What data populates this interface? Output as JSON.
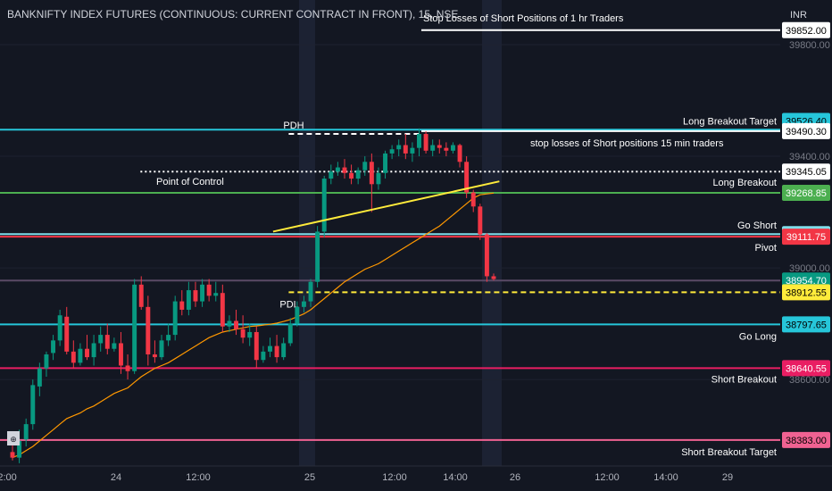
{
  "header": {
    "title": "BANKNIFTY INDEX FUTURES (CONTINUOUS: CURRENT CONTRACT IN FRONT), 15, NSE",
    "currency": "INR"
  },
  "chart_data": {
    "type": "candlestick",
    "ylim": [
      38290,
      39960
    ],
    "y_ticks": [
      {
        "value": 39800,
        "label": "39800.00"
      },
      {
        "value": 39400,
        "label": "39400.00"
      },
      {
        "value": 39000,
        "label": "39000.00"
      },
      {
        "value": 38600,
        "label": "38600.00"
      }
    ],
    "x_ticks": [
      "12:00",
      "24",
      "12:00",
      "25",
      "12:00",
      "14:00",
      "26",
      "12:00",
      "14:00",
      "29"
    ],
    "levels": [
      {
        "value": 39852.0,
        "label": "39852.00",
        "name": "Stop Losses of Short Positions of 1 hr Traders",
        "color": "#ffffff",
        "text_color": "#000000",
        "style": "solid",
        "start": 0.54,
        "name_anchor": "start"
      },
      {
        "value": 39526.4,
        "label": "39526.40",
        "name": "",
        "color": "#26c6da",
        "text_color": "#000000",
        "style": "none"
      },
      {
        "value": 39495.25,
        "label": "39495.25",
        "name": "Long Breakout Target",
        "color": "#26c6da",
        "text_color": "#ffffff",
        "style": "solid",
        "badge": "plain"
      },
      {
        "value": 39490.3,
        "label": "39490.30",
        "name": "stop losses of  Short positions 15 min traders",
        "color": "#ffffff",
        "text_color": "#000000",
        "style": "solid",
        "start": 0.54,
        "name_anchor": "mid"
      },
      {
        "value": 39480.0,
        "label": "",
        "name": "PDH",
        "color": "#ffffff",
        "style": "dashed",
        "start": 0.37,
        "end": 0.54,
        "name_anchor": "startabove"
      },
      {
        "value": 39345.05,
        "label": "39345.05",
        "name": "Point of Control",
        "color": "#ffffff",
        "text_color": "#000000",
        "style": "dotted",
        "start": 0.18,
        "name_anchor": "poc"
      },
      {
        "value": 39268.85,
        "label": "39268.85",
        "name": "Long Breakout",
        "color": "#4caf50",
        "text_color": "#ffffff",
        "style": "solid",
        "badge_color": "#4caf50"
      },
      {
        "value": 39121.15,
        "label": "39121.15",
        "name": "Go Short",
        "color": "#80deea",
        "text_color": "#000000",
        "style": "solid"
      },
      {
        "value": 39111.75,
        "label": "39111.75",
        "name": "Pivot",
        "color": "#f23645",
        "text_color": "#ffffff",
        "style": "solid"
      },
      {
        "value": 38954.7,
        "label": "38954.70",
        "name": "",
        "color": "#5b4a66",
        "text_color": "#ffffff",
        "style": "solid",
        "badge_color": "#089981"
      },
      {
        "value": 38912.55,
        "label": "38912.55",
        "name": "PDL",
        "color": "#ffeb3b",
        "text_color": "#000000",
        "style": "dashed",
        "start": 0.37,
        "name_anchor": "pdl"
      },
      {
        "value": 38797.65,
        "label": "38797.65",
        "name": "Go Long",
        "color": "#26c6da",
        "text_color": "#000000",
        "style": "solid"
      },
      {
        "value": 38640.55,
        "label": "38640.55",
        "name": "Short Breakout",
        "color": "#e91e63",
        "text_color": "#ffffff",
        "style": "solid"
      },
      {
        "value": 38383.0,
        "label": "38383.00",
        "name": "Short Breakout Target",
        "color": "#f06292",
        "text_color": "#000000",
        "style": "solid"
      }
    ],
    "trendline": {
      "color": "#ffeb3b",
      "from": [
        0.35,
        39130
      ],
      "to": [
        0.64,
        39310
      ]
    },
    "candles": [
      [
        38340,
        38380,
        38320,
        38310
      ],
      [
        38320,
        38420,
        38380,
        38300
      ],
      [
        38385,
        38460,
        38440,
        38360
      ],
      [
        38440,
        38600,
        38580,
        38420
      ],
      [
        38575,
        38660,
        38640,
        38540
      ],
      [
        38640,
        38700,
        38690,
        38610
      ],
      [
        38695,
        38760,
        38740,
        38670
      ],
      [
        38740,
        38850,
        38830,
        38720
      ],
      [
        38825,
        38860,
        38700,
        38690
      ],
      [
        38700,
        38740,
        38660,
        38640
      ],
      [
        38660,
        38730,
        38710,
        38650
      ],
      [
        38710,
        38760,
        38680,
        38670
      ],
      [
        38680,
        38760,
        38730,
        38650
      ],
      [
        38730,
        38790,
        38760,
        38700
      ],
      [
        38760,
        38800,
        38710,
        38690
      ],
      [
        38710,
        38750,
        38730,
        38700
      ],
      [
        38730,
        38770,
        38650,
        38620
      ],
      [
        38650,
        38690,
        38630,
        38600
      ],
      [
        38630,
        38960,
        38940,
        38620
      ],
      [
        38940,
        38970,
        38860,
        38850
      ],
      [
        38860,
        38900,
        38690,
        38650
      ],
      [
        38690,
        38740,
        38680,
        38660
      ],
      [
        38680,
        38760,
        38740,
        38670
      ],
      [
        38740,
        38800,
        38760,
        38720
      ],
      [
        38760,
        38900,
        38880,
        38740
      ],
      [
        38880,
        38920,
        38850,
        38830
      ],
      [
        38850,
        38950,
        38920,
        38830
      ],
      [
        38920,
        38950,
        38880,
        38860
      ],
      [
        38880,
        38960,
        38940,
        38860
      ],
      [
        38940,
        38960,
        38900,
        38880
      ],
      [
        38900,
        38950,
        38910,
        38880
      ],
      [
        38910,
        38940,
        38790,
        38770
      ],
      [
        38790,
        38830,
        38810,
        38770
      ],
      [
        38810,
        38850,
        38780,
        38760
      ],
      [
        38780,
        38830,
        38750,
        38730
      ],
      [
        38750,
        38800,
        38770,
        38720
      ],
      [
        38770,
        38790,
        38670,
        38640
      ],
      [
        38670,
        38720,
        38700,
        38660
      ],
      [
        38700,
        38750,
        38720,
        38680
      ],
      [
        38720,
        38760,
        38680,
        38660
      ],
      [
        38680,
        38750,
        38730,
        38670
      ],
      [
        38730,
        38820,
        38800,
        38720
      ],
      [
        38800,
        38880,
        38860,
        38790
      ],
      [
        38860,
        38900,
        38880,
        38840
      ],
      [
        38880,
        38960,
        38950,
        38860
      ],
      [
        38950,
        39150,
        39130,
        38930
      ],
      [
        39130,
        39330,
        39320,
        39110
      ],
      [
        39320,
        39370,
        39345,
        39300
      ],
      [
        39345,
        39380,
        39360,
        39330
      ],
      [
        39360,
        39390,
        39340,
        39320
      ],
      [
        39340,
        39370,
        39320,
        39300
      ],
      [
        39320,
        39360,
        39350,
        39300
      ],
      [
        39350,
        39400,
        39380,
        39330
      ],
      [
        39380,
        39410,
        39300,
        39200
      ],
      [
        39300,
        39360,
        39340,
        39280
      ],
      [
        39340,
        39420,
        39410,
        39320
      ],
      [
        39410,
        39440,
        39425,
        39390
      ],
      [
        39425,
        39460,
        39440,
        39400
      ],
      [
        39440,
        39480,
        39410,
        39390
      ],
      [
        39410,
        39450,
        39430,
        39380
      ],
      [
        39430,
        39500,
        39480,
        39400
      ],
      [
        39480,
        39490,
        39420,
        39410
      ],
      [
        39420,
        39460,
        39440,
        39400
      ],
      [
        39440,
        39460,
        39430,
        39410
      ],
      [
        39430,
        39450,
        39420,
        39400
      ],
      [
        39420,
        39450,
        39440,
        39410
      ],
      [
        39440,
        39445,
        39380,
        39360
      ],
      [
        39380,
        39400,
        39270,
        39250
      ],
      [
        39270,
        39280,
        39220,
        39200
      ],
      [
        39220,
        39230,
        39120,
        39100
      ],
      [
        39120,
        39125,
        38970,
        38950
      ],
      [
        38970,
        38980,
        38960,
        38955
      ]
    ],
    "ma_values": [
      38320,
      38330,
      38345,
      38360,
      38380,
      38400,
      38420,
      38440,
      38460,
      38470,
      38480,
      38495,
      38505,
      38520,
      38535,
      38550,
      38560,
      38570,
      38590,
      38610,
      38625,
      38640,
      38650,
      38660,
      38675,
      38690,
      38705,
      38720,
      38735,
      38750,
      38760,
      38770,
      38775,
      38780,
      38785,
      38790,
      38792,
      38795,
      38798,
      38802,
      38808,
      38815,
      38825,
      38835,
      38850,
      38870,
      38890,
      38910,
      38930,
      38950,
      38965,
      38980,
      38995,
      39005,
      39015,
      39030,
      39045,
      39060,
      39075,
      39090,
      39105,
      39120,
      39135,
      39150,
      39170,
      39190,
      39210,
      39230,
      39250,
      39262,
      39265,
      39268
    ]
  }
}
